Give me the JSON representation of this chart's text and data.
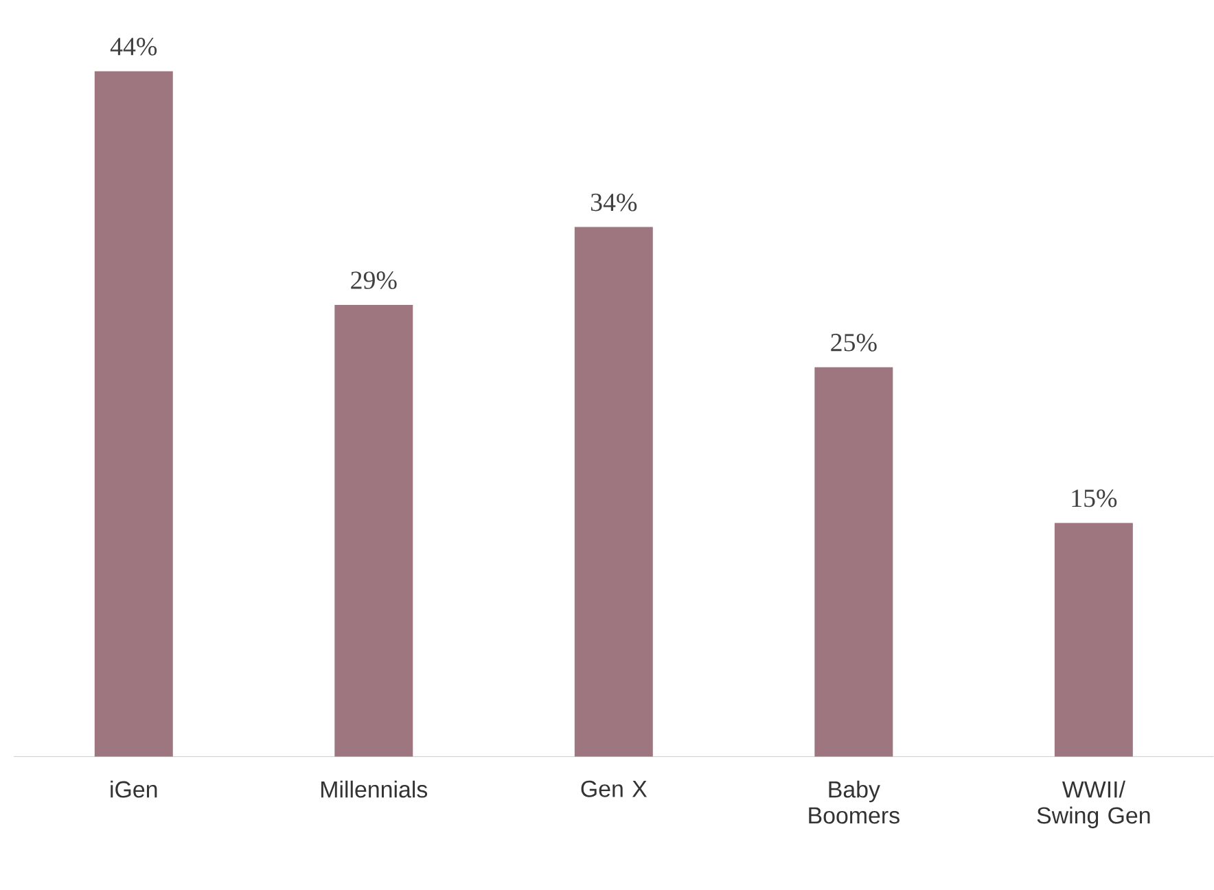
{
  "chart_data": {
    "type": "bar",
    "categories": [
      "iGen",
      "Millennials",
      "Gen X",
      "Baby Boomers",
      "WWII/ Swing Gen"
    ],
    "values": [
      44,
      29,
      34,
      25,
      15
    ],
    "value_labels": [
      "44%",
      "29%",
      "34%",
      "25%",
      "15%"
    ],
    "color": "#9e7680"
  }
}
